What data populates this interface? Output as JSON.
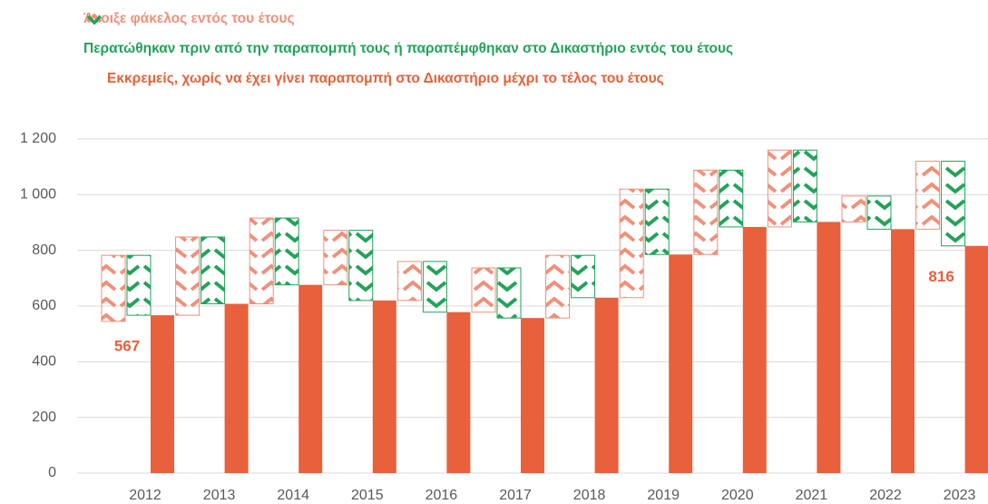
{
  "chart_data": {
    "type": "waterfall",
    "categories": [
      "2012",
      "2013",
      "2014",
      "2015",
      "2016",
      "2017",
      "2018",
      "2019",
      "2020",
      "2021",
      "2022",
      "2023"
    ],
    "start": 545,
    "series": [
      {
        "name": "Άνοιξε φάκελος εντός του έτους",
        "color": "#f0907a",
        "values": [
          237,
          281,
          308,
          196,
          140,
          159,
          225,
          390,
          303,
          276,
          93,
          244
        ]
      },
      {
        "name": "Περατώθηκαν πριν από την παραπομπή τους ή παραπέμφθηκαν στο Δικαστήριο εντός του έτους",
        "color": "#22a35a",
        "values": [
          215,
          240,
          240,
          252,
          182,
          180,
          152,
          235,
          204,
          258,
          119,
          304
        ]
      },
      {
        "name": "Εκκρεμείς, χωρίς να έχει γίνει παραπομπή στο Δικαστήριο μέχρι το τέλος του έτους",
        "color": "#e8603c",
        "values": [
          567,
          608,
          676,
          620,
          578,
          557,
          630,
          785,
          884,
          902,
          876,
          816
        ]
      }
    ],
    "labeled": [
      "2012",
      "2023"
    ],
    "ylim": [
      0,
      1200
    ],
    "yticks": [
      0,
      200,
      400,
      600,
      800,
      {
        "value": 1000,
        "label": "1 000"
      },
      {
        "value": 1200,
        "label": "1 200"
      }
    ],
    "grid": true
  }
}
